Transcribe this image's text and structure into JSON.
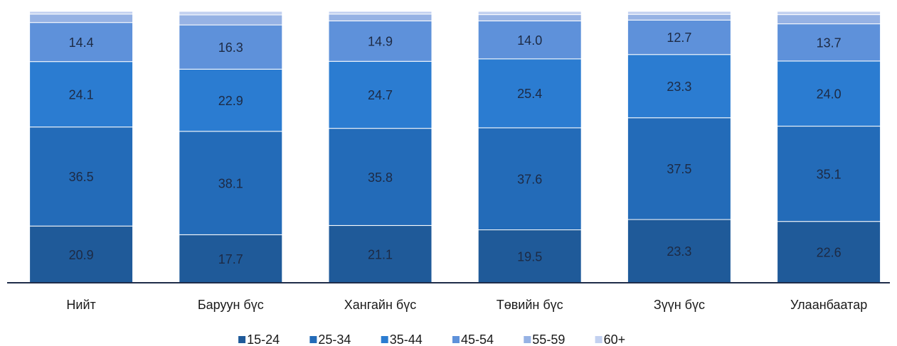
{
  "chart_data": {
    "type": "stacked_bar",
    "categories": [
      "Нийт",
      "Баруун бүс",
      "Хангайн бүс",
      "Төвийн бүс",
      "Зүүн бүс",
      "Улаанбаатар"
    ],
    "series": [
      {
        "name": "15-24",
        "color": "#1f5a99",
        "values": [
          20.9,
          17.7,
          21.1,
          19.5,
          23.3,
          22.6
        ],
        "value_labels": [
          "20.9",
          "17.7",
          "21.1",
          "19.5",
          "23.3",
          "22.6"
        ]
      },
      {
        "name": "25-34",
        "color": "#236bb8",
        "values": [
          36.5,
          38.1,
          35.8,
          37.6,
          37.5,
          35.1
        ],
        "value_labels": [
          "36.5",
          "38.1",
          "35.8",
          "37.6",
          "37.5",
          "35.1"
        ]
      },
      {
        "name": "35-44",
        "color": "#2b7cd1",
        "values": [
          24.1,
          22.9,
          24.7,
          25.4,
          23.3,
          24.0
        ],
        "value_labels": [
          "24.1",
          "22.9",
          "24.7",
          "25.4",
          "23.3",
          "24.0"
        ]
      },
      {
        "name": "45-54",
        "color": "#5e91da",
        "values": [
          14.4,
          16.3,
          14.9,
          14.0,
          12.7,
          13.7
        ],
        "value_labels": [
          "14.4",
          "16.3",
          "14.9",
          "14.0",
          "12.7",
          "13.7"
        ]
      },
      {
        "name": "55-59",
        "color": "#96b2e4",
        "values": [
          3.1,
          3.7,
          2.5,
          2.3,
          2.1,
          3.4
        ]
      },
      {
        "name": "60+",
        "color": "#c3d1f0",
        "values": [
          1.0,
          1.3,
          1.0,
          1.2,
          1.1,
          1.2
        ]
      }
    ],
    "ylim": [
      0,
      100
    ]
  }
}
